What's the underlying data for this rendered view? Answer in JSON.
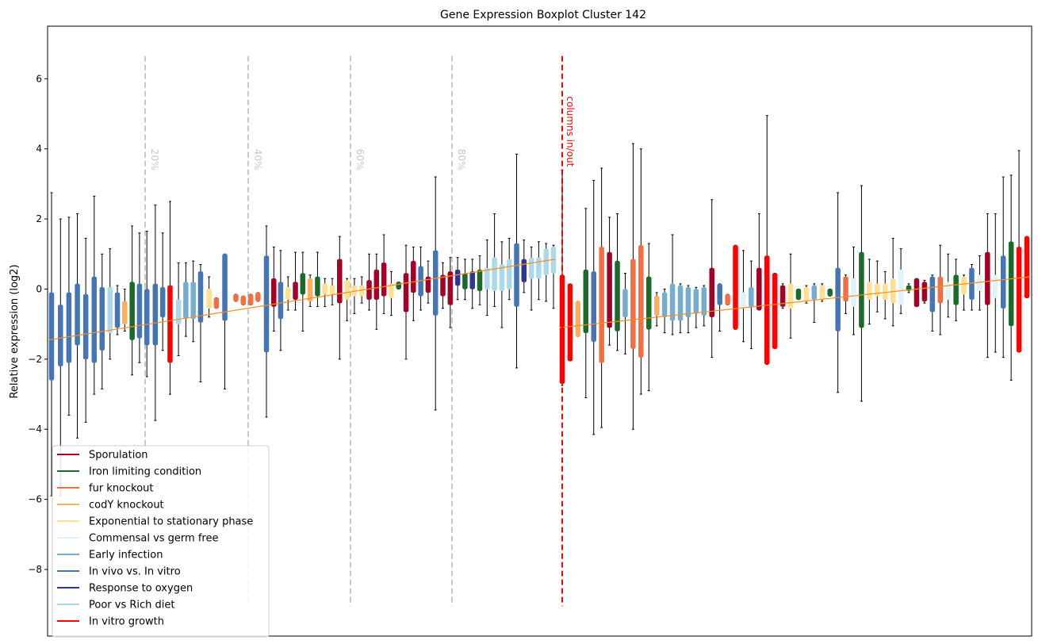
{
  "chart_data": {
    "type": "boxplot",
    "title": "Gene Expression Boxplot Cluster 142",
    "xlabel": "",
    "ylabel": "Relative expression (log2)",
    "ylim": [
      -9.9,
      7.5
    ],
    "yticks": [
      -8,
      -6,
      -4,
      -2,
      0,
      2,
      4,
      6
    ],
    "ytick_labels": [
      "−8",
      "−6",
      "−4",
      "−2",
      "0",
      "2",
      "4",
      "6"
    ],
    "xlim": [
      0,
      100
    ],
    "x_ticks_visible": false,
    "grid": false,
    "legend_position": "lower-left",
    "percentile_lines": [
      {
        "label": "20%",
        "x": 20
      },
      {
        "label": "40%",
        "x": 40
      },
      {
        "label": "60%",
        "x": 60
      },
      {
        "label": "80%",
        "x": 80
      }
    ],
    "columns_line": {
      "label": "columns in/out",
      "x": 101.5
    },
    "legend": [
      {
        "label": "Sporulation",
        "color": "#a50026"
      },
      {
        "label": "Iron limiting condition",
        "color": "#1a6b2a"
      },
      {
        "label": "fur knockout",
        "color": "#f46d43"
      },
      {
        "label": "codY knockout",
        "color": "#fdae61"
      },
      {
        "label": "Exponential to stationary phase",
        "color": "#fee090"
      },
      {
        "label": "Commensal vs germ free",
        "color": "#e0f3f8"
      },
      {
        "label": "Early infection",
        "color": "#74add1"
      },
      {
        "label": "In vivo vs. In vitro",
        "color": "#4575b4"
      },
      {
        "label": "Response to oxygen",
        "color": "#313695"
      },
      {
        "label": "Poor vs Rich diet",
        "color": "#abd9e9"
      },
      {
        "label": "In vitro growth",
        "color": "#ff0000"
      }
    ],
    "left_boxes": [
      {
        "x": 0.5,
        "q1": -2.6,
        "q3": -0.1,
        "wlo": -5.9,
        "whi": 2.75,
        "cat": 7
      },
      {
        "x": 2.2,
        "q1": -2.2,
        "q3": -0.45,
        "wlo": -5.9,
        "whi": 2.0,
        "cat": 7
      },
      {
        "x": 3.8,
        "q1": -2.1,
        "q3": -0.1,
        "wlo": -3.6,
        "whi": 2.05,
        "cat": 7
      },
      {
        "x": 5.4,
        "q1": -1.6,
        "q3": 0.15,
        "wlo": -4.25,
        "whi": 2.15,
        "cat": 7
      },
      {
        "x": 7.0,
        "q1": -2.0,
        "q3": -0.15,
        "wlo": -3.8,
        "whi": 1.45,
        "cat": 7
      },
      {
        "x": 8.6,
        "q1": -2.1,
        "q3": 0.35,
        "wlo": -3.0,
        "whi": 2.65,
        "cat": 7
      },
      {
        "x": 10.1,
        "q1": -1.75,
        "q3": 0.05,
        "wlo": -2.85,
        "whi": 1.0,
        "cat": 7
      },
      {
        "x": 11.6,
        "q1": -1.25,
        "q3": 0.05,
        "wlo": -2.0,
        "whi": 1.15,
        "cat": 9
      },
      {
        "x": 13.0,
        "q1": -1.1,
        "q3": -0.1,
        "wlo": -1.3,
        "whi": 0.1,
        "cat": 7
      },
      {
        "x": 14.4,
        "q1": -1.0,
        "q3": -0.35,
        "wlo": -1.2,
        "whi": 0.0,
        "cat": 3
      },
      {
        "x": 15.8,
        "q1": -1.45,
        "q3": 0.2,
        "wlo": -2.45,
        "whi": 1.8,
        "cat": 1
      },
      {
        "x": 17.2,
        "q1": -1.4,
        "q3": 0.15,
        "wlo": -2.1,
        "whi": 1.6,
        "cat": 7
      },
      {
        "x": 18.6,
        "q1": -1.6,
        "q3": 0.0,
        "wlo": -2.5,
        "whi": 1.65,
        "cat": 7
      },
      {
        "x": 20.2,
        "q1": -1.6,
        "q3": 0.15,
        "wlo": -3.75,
        "whi": 2.4,
        "cat": 7
      },
      {
        "x": 21.6,
        "q1": -0.8,
        "q3": 0.05,
        "wlo": -1.75,
        "whi": 1.6,
        "cat": 7
      },
      {
        "x": 23.0,
        "q1": -2.1,
        "q3": 0.1,
        "wlo": -3.0,
        "whi": 2.5,
        "cat": 10
      },
      {
        "x": 24.6,
        "q1": -1.0,
        "q3": -0.3,
        "wlo": -1.9,
        "whi": 0.75,
        "cat": 9
      },
      {
        "x": 26.0,
        "q1": -0.85,
        "q3": 0.2,
        "wlo": -1.35,
        "whi": 0.75,
        "cat": 6
      },
      {
        "x": 27.4,
        "q1": -0.85,
        "q3": 0.2,
        "wlo": -1.5,
        "whi": 0.8,
        "cat": 6
      },
      {
        "x": 28.8,
        "q1": -0.95,
        "q3": 0.5,
        "wlo": -2.65,
        "whi": 0.7,
        "cat": 7
      },
      {
        "x": 30.4,
        "q1": -0.55,
        "q3": 0.0,
        "wlo": -0.8,
        "whi": 0.35,
        "cat": 4
      },
      {
        "x": 31.8,
        "q1": -0.55,
        "q3": -0.25,
        "wlo": -0.55,
        "whi": -0.25,
        "cat": 2
      },
      {
        "x": 33.4,
        "q1": -0.9,
        "q3": 1.0,
        "wlo": -2.85,
        "whi": 1.0,
        "cat": 7
      },
      {
        "x": 35.5,
        "q1": -0.35,
        "q3": -0.15,
        "wlo": -0.35,
        "whi": -0.15,
        "cat": 2
      },
      {
        "x": 36.9,
        "q1": -0.45,
        "q3": -0.2,
        "wlo": -0.45,
        "whi": -0.2,
        "cat": 2
      },
      {
        "x": 38.3,
        "q1": -0.45,
        "q3": -0.15,
        "wlo": -0.45,
        "whi": -0.15,
        "cat": 2
      },
      {
        "x": 39.7,
        "q1": -0.35,
        "q3": -0.1,
        "wlo": -0.35,
        "whi": -0.1,
        "cat": 2
      },
      {
        "x": 41.3,
        "q1": -1.8,
        "q3": 0.95,
        "wlo": -3.65,
        "whi": 1.8,
        "cat": 7
      },
      {
        "x": 42.7,
        "q1": -0.5,
        "q3": 0.3,
        "wlo": -1.2,
        "whi": 1.2,
        "cat": 0
      },
      {
        "x": 44.0,
        "q1": -0.85,
        "q3": 0.2,
        "wlo": -1.75,
        "whi": 1.1,
        "cat": 7
      },
      {
        "x": 45.4,
        "q1": -0.3,
        "q3": 0.05,
        "wlo": -0.6,
        "whi": 0.35,
        "cat": 4
      },
      {
        "x": 46.8,
        "q1": -0.3,
        "q3": 0.2,
        "wlo": -0.6,
        "whi": 1.05,
        "cat": 0
      },
      {
        "x": 48.2,
        "q1": -0.15,
        "q3": 0.45,
        "wlo": -1.2,
        "whi": 1.05,
        "cat": 1
      },
      {
        "x": 49.6,
        "q1": -0.35,
        "q3": 0.3,
        "wlo": -0.5,
        "whi": 0.4,
        "cat": 3
      },
      {
        "x": 51.0,
        "q1": -0.2,
        "q3": 0.35,
        "wlo": -0.5,
        "whi": 1.05,
        "cat": 1
      },
      {
        "x": 52.4,
        "q1": -0.15,
        "q3": 0.15,
        "wlo": -0.5,
        "whi": 0.3,
        "cat": 4
      },
      {
        "x": 53.8,
        "q1": -0.15,
        "q3": 0.1,
        "wlo": -0.45,
        "whi": 0.3,
        "cat": 4
      },
      {
        "x": 55.2,
        "q1": -0.4,
        "q3": 0.85,
        "wlo": -2.0,
        "whi": 1.5,
        "cat": 0
      },
      {
        "x": 56.6,
        "q1": -0.3,
        "q3": 0.25,
        "wlo": -0.9,
        "whi": 0.3,
        "cat": 4
      },
      {
        "x": 58.0,
        "q1": -0.2,
        "q3": 0.1,
        "wlo": -0.7,
        "whi": 0.3,
        "cat": 4
      },
      {
        "x": 59.4,
        "q1": -0.2,
        "q3": 0.1,
        "wlo": -0.4,
        "whi": 0.35,
        "cat": 4
      },
      {
        "x": 60.8,
        "q1": -0.3,
        "q3": 0.25,
        "wlo": -0.6,
        "whi": 1.0,
        "cat": 0
      },
      {
        "x": 62.2,
        "q1": -0.3,
        "q3": 0.55,
        "wlo": -1.15,
        "whi": 1.0,
        "cat": 0
      },
      {
        "x": 63.6,
        "q1": -0.2,
        "q3": 0.75,
        "wlo": -0.7,
        "whi": 1.55,
        "cat": 0
      },
      {
        "x": 65.0,
        "q1": -0.25,
        "q3": 0.15,
        "wlo": -0.75,
        "whi": 0.5,
        "cat": 4
      },
      {
        "x": 66.4,
        "q1": 0.0,
        "q3": 0.2,
        "wlo": 0.0,
        "whi": 0.2,
        "cat": 1
      },
      {
        "x": 67.8,
        "q1": -0.65,
        "q3": 0.45,
        "wlo": -2.0,
        "whi": 1.25,
        "cat": 0
      },
      {
        "x": 69.2,
        "q1": -0.1,
        "q3": 0.8,
        "wlo": -0.9,
        "whi": 1.2,
        "cat": 0
      },
      {
        "x": 70.6,
        "q1": -0.2,
        "q3": 0.65,
        "wlo": -0.6,
        "whi": 1.2,
        "cat": 7
      },
      {
        "x": 72.0,
        "q1": -0.1,
        "q3": 0.35,
        "wlo": -0.4,
        "whi": 0.8,
        "cat": 0
      },
      {
        "x": 73.4,
        "q1": -0.75,
        "q3": 1.1,
        "wlo": -3.45,
        "whi": 3.2,
        "cat": 7
      },
      {
        "x": 74.8,
        "q1": -0.2,
        "q3": 0.4,
        "wlo": -0.55,
        "whi": 0.75,
        "cat": 0
      },
      {
        "x": 76.2,
        "q1": -0.45,
        "q3": 0.5,
        "wlo": -1.1,
        "whi": 0.9,
        "cat": 0
      },
      {
        "x": 77.6,
        "q1": 0.1,
        "q3": 0.55,
        "wlo": -0.3,
        "whi": 0.9,
        "cat": 8
      },
      {
        "x": 79.0,
        "q1": 0.0,
        "q3": 0.45,
        "wlo": -0.3,
        "whi": 0.85,
        "cat": 1
      },
      {
        "x": 80.4,
        "q1": 0.0,
        "q3": 0.5,
        "wlo": -0.55,
        "whi": 0.85,
        "cat": 8
      },
      {
        "x": 81.8,
        "q1": -0.05,
        "q3": 0.55,
        "wlo": -0.45,
        "whi": 0.95,
        "cat": 1
      },
      {
        "x": 83.2,
        "q1": 0.0,
        "q3": 0.6,
        "wlo": -0.75,
        "whi": 1.4,
        "cat": 9
      },
      {
        "x": 84.6,
        "q1": -0.05,
        "q3": 0.9,
        "wlo": -0.5,
        "whi": 2.15,
        "cat": 9
      },
      {
        "x": 86.0,
        "q1": -0.05,
        "q3": 0.7,
        "wlo": -1.1,
        "whi": 1.35,
        "cat": 9
      },
      {
        "x": 87.4,
        "q1": 0.0,
        "q3": 0.85,
        "wlo": -0.3,
        "whi": 1.45,
        "cat": 9
      },
      {
        "x": 88.8,
        "q1": -0.5,
        "q3": 1.3,
        "wlo": -2.25,
        "whi": 3.85,
        "cat": 7
      },
      {
        "x": 90.2,
        "q1": 0.2,
        "q3": 0.85,
        "wlo": -0.1,
        "whi": 1.4,
        "cat": 8
      },
      {
        "x": 91.6,
        "q1": 0.3,
        "q3": 0.9,
        "wlo": -0.6,
        "whi": 1.2,
        "cat": 9
      },
      {
        "x": 93.0,
        "q1": 0.3,
        "q3": 0.9,
        "wlo": -0.3,
        "whi": 1.35,
        "cat": 9
      },
      {
        "x": 94.4,
        "q1": 0.4,
        "q3": 1.15,
        "wlo": -0.35,
        "whi": 1.3,
        "cat": 9
      },
      {
        "x": 95.8,
        "q1": 0.45,
        "q3": 1.2,
        "wlo": -0.55,
        "whi": 1.25,
        "cat": 9
      }
    ],
    "right_boxes": [
      {
        "x": 102.0,
        "q1": -2.7,
        "q3": 0.4,
        "wlo": -2.75,
        "whi": 3.4,
        "cat": 10
      },
      {
        "x": 103.4,
        "q1": -2.05,
        "q3": 0.15,
        "wlo": -2.05,
        "whi": 0.15,
        "cat": 10
      },
      {
        "x": 104.8,
        "q1": -1.35,
        "q3": -0.35,
        "wlo": -1.35,
        "whi": -0.35,
        "cat": 3
      },
      {
        "x": 106.2,
        "q1": -1.25,
        "q3": 0.55,
        "wlo": -3.1,
        "whi": 2.3,
        "cat": 1
      },
      {
        "x": 107.6,
        "q1": -1.5,
        "q3": 0.5,
        "wlo": -4.15,
        "whi": 3.1,
        "cat": 7
      },
      {
        "x": 109.0,
        "q1": -2.1,
        "q3": 1.2,
        "wlo": -3.95,
        "whi": 3.45,
        "cat": 2
      },
      {
        "x": 110.4,
        "q1": -1.1,
        "q3": 1.05,
        "wlo": -1.6,
        "whi": 2.05,
        "cat": 0
      },
      {
        "x": 111.8,
        "q1": -1.2,
        "q3": 0.8,
        "wlo": -1.75,
        "whi": 2.15,
        "cat": 1
      },
      {
        "x": 113.2,
        "q1": -0.8,
        "q3": 0.0,
        "wlo": -1.85,
        "whi": 0.45,
        "cat": 6
      },
      {
        "x": 114.6,
        "q1": -1.7,
        "q3": 0.85,
        "wlo": -4.0,
        "whi": 4.15,
        "cat": 2
      },
      {
        "x": 116.0,
        "q1": -1.95,
        "q3": 1.25,
        "wlo": -3.0,
        "whi": 4.0,
        "cat": 2
      },
      {
        "x": 117.4,
        "q1": -1.15,
        "q3": 0.35,
        "wlo": -2.9,
        "whi": 1.3,
        "cat": 1
      },
      {
        "x": 118.8,
        "q1": -0.75,
        "q3": -0.2,
        "wlo": -1.05,
        "whi": -0.1,
        "cat": 3
      },
      {
        "x": 120.2,
        "q1": -0.8,
        "q3": -0.1,
        "wlo": -1.25,
        "whi": 0.0,
        "cat": 6
      },
      {
        "x": 121.6,
        "q1": -0.9,
        "q3": 0.15,
        "wlo": -1.3,
        "whi": 1.55,
        "cat": 6
      },
      {
        "x": 123.0,
        "q1": -0.9,
        "q3": 0.1,
        "wlo": -1.25,
        "whi": 0.15,
        "cat": 6
      },
      {
        "x": 124.4,
        "q1": -0.8,
        "q3": 0.05,
        "wlo": -1.25,
        "whi": 0.1,
        "cat": 6
      },
      {
        "x": 125.8,
        "q1": -0.7,
        "q3": 0.0,
        "wlo": -1.1,
        "whi": 0.05,
        "cat": 6
      },
      {
        "x": 127.2,
        "q1": -0.75,
        "q3": 0.05,
        "wlo": -1.05,
        "whi": 0.1,
        "cat": 6
      },
      {
        "x": 128.6,
        "q1": -0.8,
        "q3": 0.6,
        "wlo": -1.95,
        "whi": 2.55,
        "cat": 0
      },
      {
        "x": 130.0,
        "q1": -0.45,
        "q3": 0.15,
        "wlo": -1.2,
        "whi": 0.15,
        "cat": 7
      },
      {
        "x": 131.4,
        "q1": -0.45,
        "q3": -0.15,
        "wlo": -0.45,
        "whi": -0.15,
        "cat": 2
      },
      {
        "x": 132.8,
        "q1": -1.15,
        "q3": 1.25,
        "wlo": -1.15,
        "whi": 1.25,
        "cat": 10
      },
      {
        "x": 134.2,
        "q1": -0.55,
        "q3": -0.1,
        "wlo": -1.5,
        "whi": 1.1,
        "cat": 5
      },
      {
        "x": 135.6,
        "q1": -0.5,
        "q3": 0.05,
        "wlo": -1.7,
        "whi": 0.8,
        "cat": 6
      },
      {
        "x": 137.0,
        "q1": -0.6,
        "q3": 0.6,
        "wlo": -0.6,
        "whi": 2.15,
        "cat": 0
      },
      {
        "x": 138.4,
        "q1": -2.15,
        "q3": 0.95,
        "wlo": -2.15,
        "whi": 4.95,
        "cat": 10
      },
      {
        "x": 139.8,
        "q1": -1.7,
        "q3": 0.45,
        "wlo": -1.7,
        "whi": 0.45,
        "cat": 10
      },
      {
        "x": 141.2,
        "q1": -0.5,
        "q3": 0.1,
        "wlo": -0.55,
        "whi": 0.15,
        "cat": 0
      },
      {
        "x": 142.6,
        "q1": -0.55,
        "q3": 0.15,
        "wlo": -1.4,
        "whi": 1.0,
        "cat": 4
      },
      {
        "x": 144.0,
        "q1": -0.3,
        "q3": 0.0,
        "wlo": -0.3,
        "whi": 0.0,
        "cat": 1
      },
      {
        "x": 145.4,
        "q1": -0.35,
        "q3": 0.05,
        "wlo": -0.4,
        "whi": 0.1,
        "cat": 4
      },
      {
        "x": 146.8,
        "q1": -0.3,
        "q3": 0.1,
        "wlo": -0.95,
        "whi": 0.15,
        "cat": 6
      },
      {
        "x": 148.2,
        "q1": -0.3,
        "q3": 0.1,
        "wlo": -0.35,
        "whi": 0.15,
        "cat": 4
      },
      {
        "x": 149.6,
        "q1": -0.2,
        "q3": 0.0,
        "wlo": -0.2,
        "whi": 0.0,
        "cat": 1
      },
      {
        "x": 151.0,
        "q1": -1.2,
        "q3": 0.6,
        "wlo": -2.95,
        "whi": 2.75,
        "cat": 7
      },
      {
        "x": 152.4,
        "q1": -0.35,
        "q3": 0.35,
        "wlo": -0.7,
        "whi": 0.4,
        "cat": 2
      },
      {
        "x": 153.8,
        "q1": -0.5,
        "q3": 0.3,
        "wlo": -1.3,
        "whi": 1.2,
        "cat": 5
      },
      {
        "x": 155.2,
        "q1": -1.1,
        "q3": 1.05,
        "wlo": -3.2,
        "whi": 2.95,
        "cat": 1
      },
      {
        "x": 156.6,
        "q1": -0.3,
        "q3": 0.2,
        "wlo": -1.0,
        "whi": 0.85,
        "cat": 4
      },
      {
        "x": 158.0,
        "q1": -0.2,
        "q3": 0.15,
        "wlo": -0.65,
        "whi": 0.8,
        "cat": 4
      },
      {
        "x": 159.4,
        "q1": -0.3,
        "q3": 0.15,
        "wlo": -0.85,
        "whi": 0.5,
        "cat": 4
      },
      {
        "x": 160.8,
        "q1": -0.4,
        "q3": 0.3,
        "wlo": -1.05,
        "whi": 1.45,
        "cat": 4
      },
      {
        "x": 162.2,
        "q1": -0.45,
        "q3": 0.55,
        "wlo": -0.7,
        "whi": 1.15,
        "cat": 5
      },
      {
        "x": 163.6,
        "q1": -0.05,
        "q3": 0.1,
        "wlo": -0.1,
        "whi": 0.15,
        "cat": 1
      },
      {
        "x": 165.0,
        "q1": -0.5,
        "q3": 0.3,
        "wlo": -0.5,
        "whi": 0.3,
        "cat": 0
      },
      {
        "x": 166.4,
        "q1": -0.35,
        "q3": 0.2,
        "wlo": -0.4,
        "whi": 0.25,
        "cat": 0
      },
      {
        "x": 167.8,
        "q1": -0.65,
        "q3": 0.35,
        "wlo": -1.2,
        "whi": 0.4,
        "cat": 7
      },
      {
        "x": 169.2,
        "q1": -0.4,
        "q3": 0.35,
        "wlo": -1.3,
        "whi": 1.25,
        "cat": 2
      },
      {
        "x": 170.6,
        "q1": -0.3,
        "q3": 0.2,
        "wlo": -0.8,
        "whi": 1.0,
        "cat": 5
      },
      {
        "x": 172.0,
        "q1": -0.45,
        "q3": 0.4,
        "wlo": -0.9,
        "whi": 0.85,
        "cat": 1
      },
      {
        "x": 173.4,
        "q1": -0.15,
        "q3": 0.35,
        "wlo": -0.6,
        "whi": 0.4,
        "cat": 4
      },
      {
        "x": 174.8,
        "q1": -0.3,
        "q3": 0.6,
        "wlo": -0.6,
        "whi": 0.7,
        "cat": 7
      },
      {
        "x": 176.2,
        "q1": -0.05,
        "q3": 0.4,
        "wlo": -0.6,
        "whi": 0.95,
        "cat": 5
      },
      {
        "x": 177.6,
        "q1": -0.45,
        "q3": 1.05,
        "wlo": -1.95,
        "whi": 2.15,
        "cat": 0
      },
      {
        "x": 179.0,
        "q1": -0.25,
        "q3": 0.4,
        "wlo": -1.8,
        "whi": 2.15,
        "cat": 5
      },
      {
        "x": 180.4,
        "q1": -0.55,
        "q3": 0.95,
        "wlo": -1.95,
        "whi": 3.2,
        "cat": 7
      },
      {
        "x": 181.8,
        "q1": -1.05,
        "q3": 1.35,
        "wlo": -2.6,
        "whi": 3.25,
        "cat": 1
      },
      {
        "x": 183.2,
        "q1": -1.8,
        "q3": 1.2,
        "wlo": -1.8,
        "whi": 3.95,
        "cat": 10
      },
      {
        "x": 184.6,
        "q1": -0.25,
        "q3": 1.5,
        "wlo": -0.25,
        "whi": 1.5,
        "cat": 10
      }
    ],
    "left_median_range": [
      -1.45,
      0.85
    ],
    "right_median_range": [
      -1.1,
      0.35
    ]
  }
}
